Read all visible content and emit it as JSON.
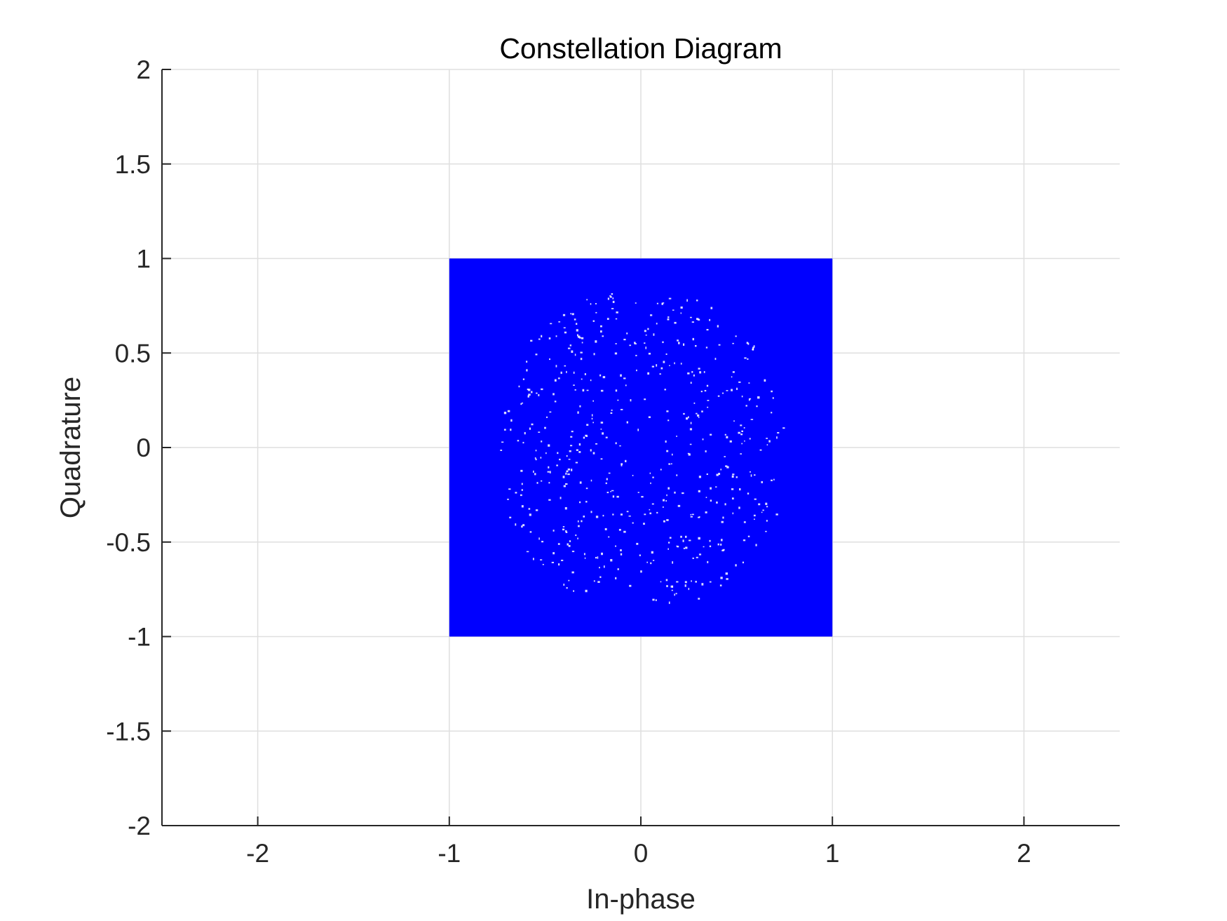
{
  "chart_data": {
    "type": "scatter",
    "title": "Constellation Diagram",
    "xlabel": "In-phase",
    "ylabel": "Quadrature",
    "xlim": [
      -2.5,
      2.5
    ],
    "ylim": [
      -2,
      2
    ],
    "xticks": [
      -2,
      -1,
      0,
      1,
      2
    ],
    "yticks": [
      -2,
      -1.5,
      -1,
      -0.5,
      0,
      0.5,
      1,
      1.5,
      2
    ],
    "xtick_labels": [
      "-2",
      "-1",
      "0",
      "1",
      "2"
    ],
    "ytick_labels": [
      "-2",
      "-1.5",
      "-1",
      "-0.5",
      "0",
      "0.5",
      "1",
      "1.5",
      "2"
    ],
    "grid": true,
    "legend": "none",
    "series": [
      {
        "color": "#0000ff",
        "distribution": "uniform",
        "x_range": [
          -1,
          1
        ],
        "y_range": [
          -1,
          1
        ]
      }
    ]
  }
}
